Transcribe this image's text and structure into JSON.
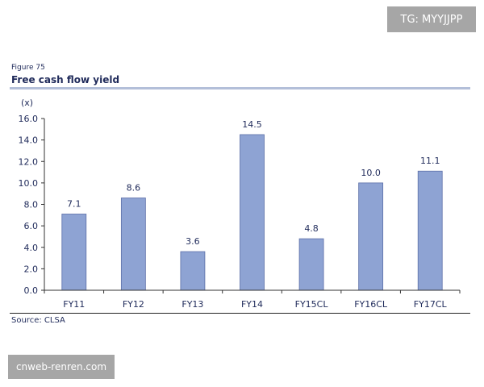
{
  "watermark_top": "TG: MYYJJPP",
  "watermark_bottom": "cnweb-renren.com",
  "figure_label": "Figure 75",
  "source": "Source: CLSA",
  "colors": {
    "bar": "#8ea3d3",
    "bar_stroke": "#5c6fa8",
    "text": "#1f2a5a"
  },
  "chart_data": {
    "type": "bar",
    "title": "Free cash flow yield",
    "ylabel": "(x)",
    "xlabel": "",
    "categories": [
      "FY11",
      "FY12",
      "FY13",
      "FY14",
      "FY15CL",
      "FY16CL",
      "FY17CL"
    ],
    "values": [
      7.1,
      8.6,
      3.6,
      14.5,
      4.8,
      10.0,
      11.1
    ],
    "value_labels": [
      "7.1",
      "8.6",
      "3.6",
      "14.5",
      "4.8",
      "10.0",
      "11.1"
    ],
    "ylim": [
      0,
      16
    ],
    "yticks": [
      "0.0",
      "2.0",
      "4.0",
      "6.0",
      "8.0",
      "10.0",
      "12.0",
      "14.0",
      "16.0"
    ],
    "grid": false
  }
}
